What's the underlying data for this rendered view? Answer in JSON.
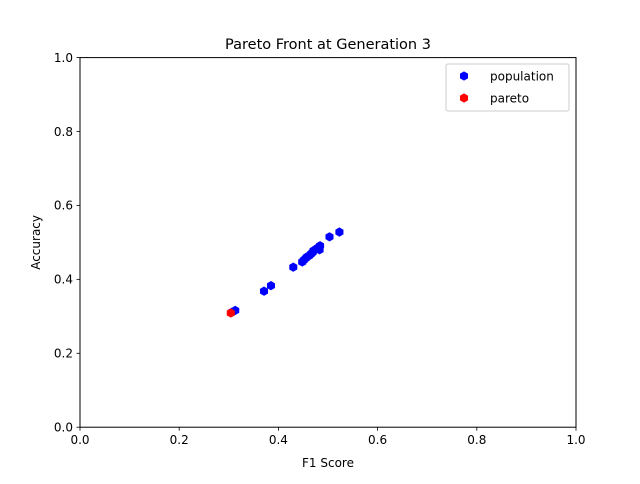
{
  "chart_data": {
    "type": "scatter",
    "title": "Pareto Front at Generation 3",
    "xlabel": "F1 Score",
    "ylabel": "Accuracy",
    "xlim": [
      0.0,
      1.0
    ],
    "ylim": [
      0.0,
      1.0
    ],
    "xticks": [
      "0.0",
      "0.2",
      "0.4",
      "0.6",
      "0.8",
      "1.0"
    ],
    "yticks": [
      "0.0",
      "0.2",
      "0.4",
      "0.6",
      "0.8",
      "1.0"
    ],
    "grid": false,
    "legend_position": "top-right",
    "series": [
      {
        "name": "population",
        "color": "#0000ff",
        "marker": "hexagon",
        "points": [
          {
            "x": 0.306,
            "y": 0.311
          },
          {
            "x": 0.313,
            "y": 0.316
          },
          {
            "x": 0.371,
            "y": 0.368
          },
          {
            "x": 0.385,
            "y": 0.383
          },
          {
            "x": 0.43,
            "y": 0.433
          },
          {
            "x": 0.448,
            "y": 0.447
          },
          {
            "x": 0.451,
            "y": 0.452
          },
          {
            "x": 0.455,
            "y": 0.457
          },
          {
            "x": 0.458,
            "y": 0.461
          },
          {
            "x": 0.462,
            "y": 0.464
          },
          {
            "x": 0.466,
            "y": 0.469
          },
          {
            "x": 0.469,
            "y": 0.473
          },
          {
            "x": 0.471,
            "y": 0.478
          },
          {
            "x": 0.476,
            "y": 0.482
          },
          {
            "x": 0.48,
            "y": 0.486
          },
          {
            "x": 0.483,
            "y": 0.48
          },
          {
            "x": 0.484,
            "y": 0.491
          },
          {
            "x": 0.503,
            "y": 0.515
          },
          {
            "x": 0.523,
            "y": 0.528
          }
        ]
      },
      {
        "name": "pareto",
        "color": "#ff0000",
        "marker": "hexagon",
        "points": [
          {
            "x": 0.304,
            "y": 0.309
          }
        ]
      }
    ]
  }
}
